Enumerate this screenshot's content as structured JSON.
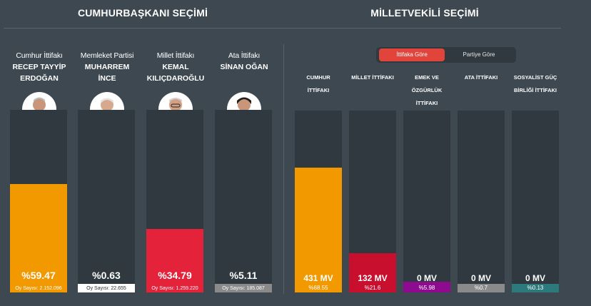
{
  "left_panel": {
    "title": "CUMHURBAŞKANI SEÇİMİ",
    "candidates": [
      {
        "party": "Cumhur İttifakı",
        "name_line1": "RECEP TAYYİP",
        "name_line2": "ERDOĞAN",
        "percent": "%59.47",
        "votes": "Oy Sayısı: 2.152.096",
        "share": 59.47,
        "color": "#f29900",
        "sub_style": "on-fill"
      },
      {
        "party": "Memleket Partisi",
        "name_line1": "MUHARREM",
        "name_line2": "İNCE",
        "percent": "%0.63",
        "votes": "Oy Sayısı: 22.655",
        "share": 0.63,
        "color": "#ffffff",
        "sub_style": "box"
      },
      {
        "party": "Millet İttifakı",
        "name_line1": "KEMAL",
        "name_line2": "KILIÇDAROĞLU",
        "percent": "%34.79",
        "votes": "Oy Sayısı: 1.259.220",
        "share": 34.79,
        "color": "#e4233a",
        "sub_style": "on-fill"
      },
      {
        "party": "Ata İttifakı",
        "name_line1": "SİNAN OĞAN",
        "name_line2": "",
        "percent": "%5.11",
        "votes": "Oy Sayısı: 185.087",
        "share": 5.11,
        "color": "#8a8a8a",
        "sub_style": "on-fill"
      }
    ]
  },
  "right_panel": {
    "title": "MİLLETVEKİLİ SEÇİMİ",
    "toggle": {
      "active": "İttifaka Göre",
      "inactive": "Partiye Göre"
    },
    "alliances": [
      {
        "name_lines": [
          "CUMHUR",
          "İTTİFAKI"
        ],
        "mv": "431 MV",
        "percent": "%68.55",
        "share": 68.55,
        "color": "#f29900"
      },
      {
        "name_lines": [
          "MİLLET İTTİFAKI"
        ],
        "mv": "132 MV",
        "percent": "%21.6",
        "share": 21.6,
        "color": "#c8102e"
      },
      {
        "name_lines": [
          "EMEK VE",
          "ÖZGÜRLÜK",
          "İTTİFAKI"
        ],
        "mv": "0 MV",
        "percent": "%5.98",
        "share": 5.98,
        "color": "#8e0a8e"
      },
      {
        "name_lines": [
          "ATA İTTİFAKI"
        ],
        "mv": "0 MV",
        "percent": "%0.7",
        "share": 0.7,
        "color": "#8a8a8a"
      },
      {
        "name_lines": [
          "SOSYALİST GÜÇ",
          "BİRLİĞİ İTTİFAKI"
        ],
        "mv": "0 MV",
        "percent": "%0.13",
        "share": 0.13,
        "color": "#2c7a7b"
      }
    ]
  }
}
